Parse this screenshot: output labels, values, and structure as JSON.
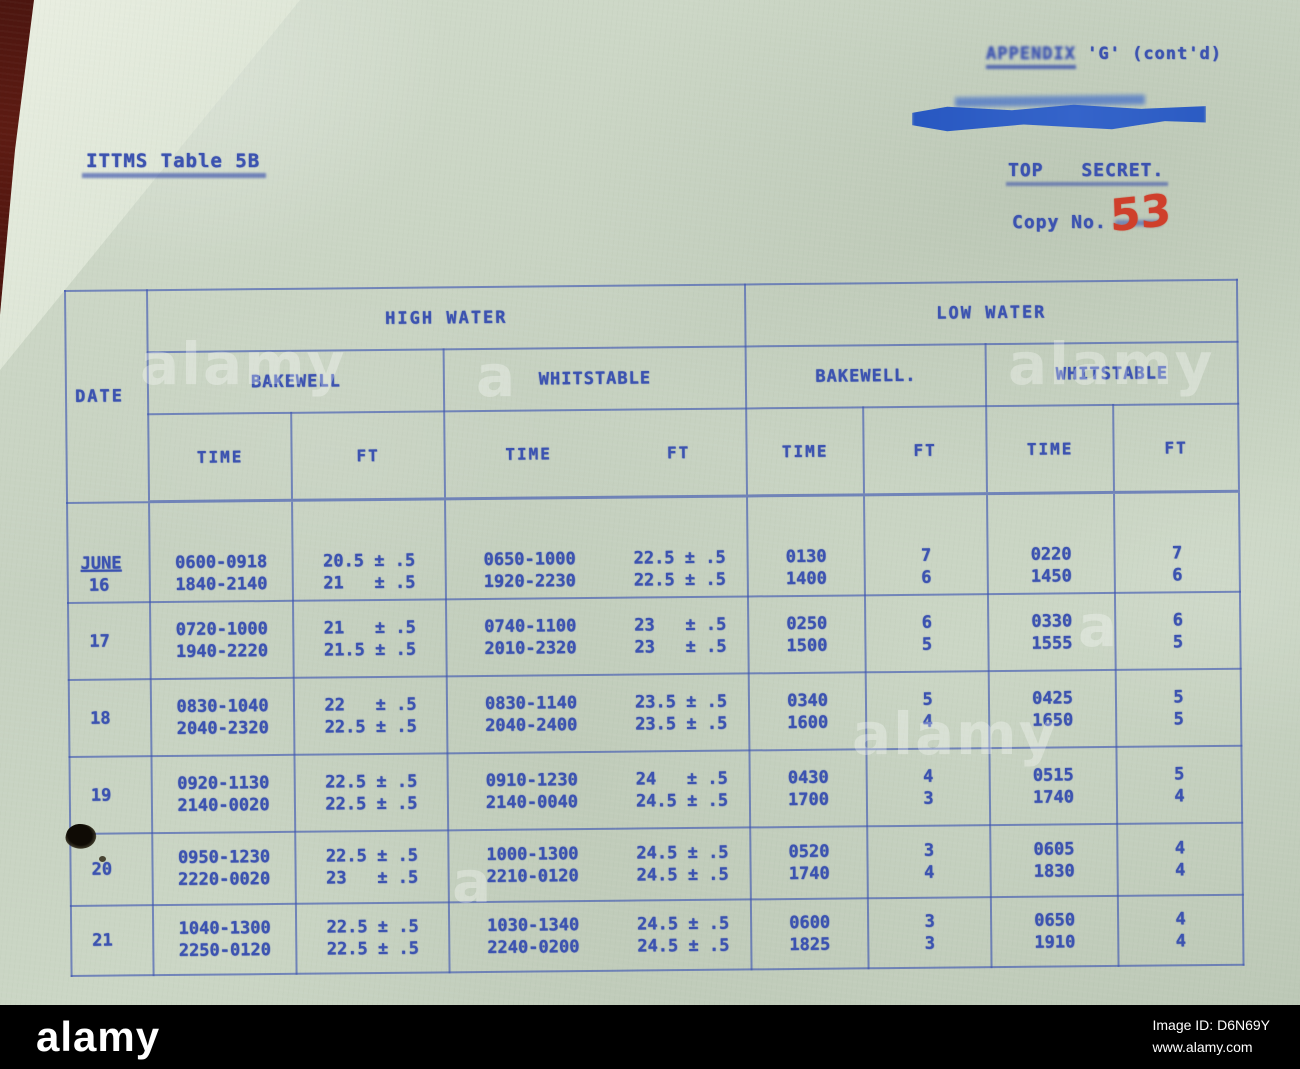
{
  "doc": {
    "appendix_prefix": "APPENDIX",
    "appendix_suffix": "'G' (cont'd)",
    "table_ref": "ITTMS Table 5B",
    "classification": "TOP SECRET.",
    "copy_label": "Copy No.",
    "copy_number": "53"
  },
  "table": {
    "date_header": "DATE",
    "high_water_label": "HIGH WATER",
    "low_water_label": "LOW WATER",
    "hw_station_1": "BAKEWELL",
    "hw_station_2": "WHITSTABLE",
    "lw_station_1": "BAKEWELL.",
    "lw_station_2": "WHITSTABLE",
    "time_label": "TIME",
    "ft_label": "FT",
    "month_label": "JUNE",
    "rows": [
      {
        "date": "16",
        "cells": [
          [
            "0600-0918",
            "1840-2140"
          ],
          [
            "20.5 ± .5",
            "21   ± .5"
          ],
          [
            "0650-1000",
            "1920-2230"
          ],
          [
            "22.5 ± .5",
            "22.5 ± .5"
          ],
          [
            "0130",
            "1400"
          ],
          [
            "7",
            "6"
          ],
          [
            "0220",
            "1450"
          ],
          [
            "7",
            "6"
          ]
        ]
      },
      {
        "date": "17",
        "cells": [
          [
            "0720-1000",
            "1940-2220"
          ],
          [
            "21   ± .5",
            "21.5 ± .5"
          ],
          [
            "0740-1100",
            "2010-2320"
          ],
          [
            "23   ± .5",
            "23   ± .5"
          ],
          [
            "0250",
            "1500"
          ],
          [
            "6",
            "5"
          ],
          [
            "0330",
            "1555"
          ],
          [
            "6",
            "5"
          ]
        ]
      },
      {
        "date": "18",
        "cells": [
          [
            "0830-1040",
            "2040-2320"
          ],
          [
            "22   ± .5",
            "22.5 ± .5"
          ],
          [
            "0830-1140",
            "2040-2400"
          ],
          [
            "23.5 ± .5",
            "23.5 ± .5"
          ],
          [
            "0340",
            "1600"
          ],
          [
            "5",
            "4"
          ],
          [
            "0425",
            "1650"
          ],
          [
            "5",
            "5"
          ]
        ]
      },
      {
        "date": "19",
        "cells": [
          [
            "0920-1130",
            "2140-0020"
          ],
          [
            "22.5 ± .5",
            "22.5 ± .5"
          ],
          [
            "0910-1230",
            "2140-0040"
          ],
          [
            "24   ± .5",
            "24.5 ± .5"
          ],
          [
            "0430",
            "1700"
          ],
          [
            "4",
            "3"
          ],
          [
            "0515",
            "1740"
          ],
          [
            "5",
            "4"
          ]
        ]
      },
      {
        "date": "20",
        "cells": [
          [
            "0950-1230",
            "2220-0020"
          ],
          [
            "22.5 ± .5",
            "23   ± .5"
          ],
          [
            "1000-1300",
            "2210-0120"
          ],
          [
            "24.5 ± .5",
            "24.5 ± .5"
          ],
          [
            "0520",
            "1740"
          ],
          [
            "3",
            "4"
          ],
          [
            "0605",
            "1830"
          ],
          [
            "4",
            "4"
          ]
        ]
      },
      {
        "date": "21",
        "cells": [
          [
            "1040-1300",
            "2250-0120"
          ],
          [
            "22.5 ± .5",
            "22.5 ± .5"
          ],
          [
            "1030-1340",
            "2240-0200"
          ],
          [
            "24.5 ± .5",
            "24.5 ± .5"
          ],
          [
            "0600",
            "1825"
          ],
          [
            "3",
            "3"
          ],
          [
            "0650",
            "1910"
          ],
          [
            "4",
            "4"
          ]
        ]
      }
    ]
  },
  "watermark": {
    "brand": "alamy",
    "mark": "a"
  },
  "footer": {
    "brand": "alamy",
    "image_id_label": "Image ID:",
    "image_id": "D6N69Y",
    "website": "www.alamy.com"
  },
  "colors": {
    "ink_blue": "#3c53b0",
    "stamp_red": "#cf3f2b",
    "paper_green": "#c7d2c1",
    "redaction_blue": "#1d4fc2",
    "footer_black": "#000000"
  }
}
